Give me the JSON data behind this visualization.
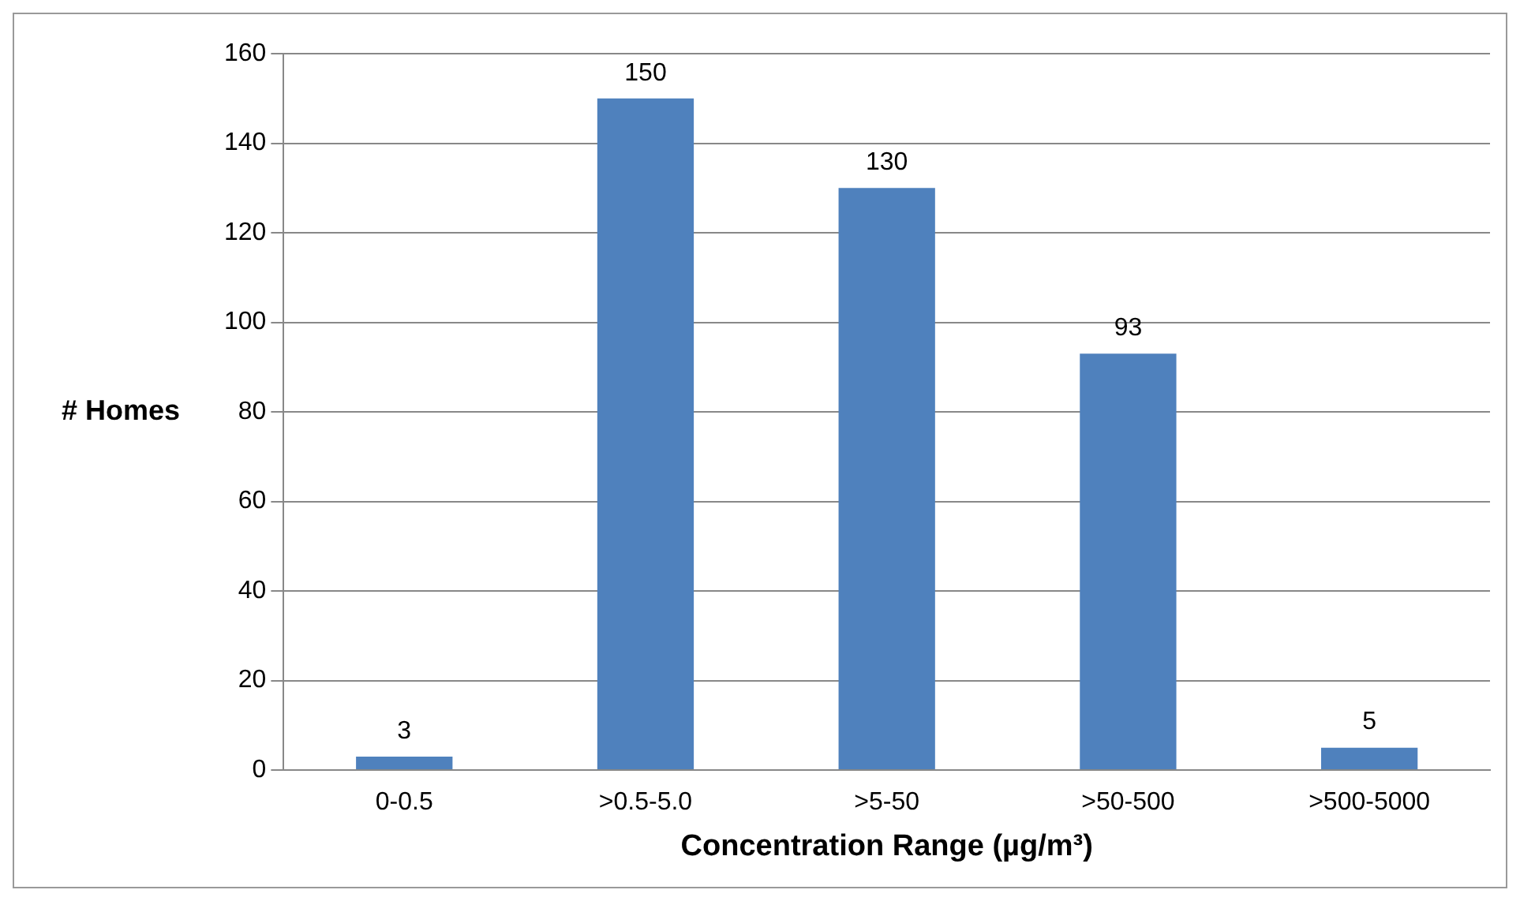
{
  "chart_data": {
    "type": "bar",
    "xlabel": "Concentration Range (µg/m³)",
    "ylabel": "# Homes",
    "categories": [
      "0-0.5",
      ">0.5-5.0",
      ">5-50",
      ">50-500",
      ">500-5000"
    ],
    "values": [
      3,
      150,
      130,
      93,
      5
    ],
    "color": "#4f81bd",
    "ylim": [
      0,
      160
    ],
    "yticks": [
      0,
      20,
      40,
      60,
      80,
      100,
      120,
      140,
      160
    ],
    "grid": "y",
    "data_labels": true,
    "legend": false
  }
}
